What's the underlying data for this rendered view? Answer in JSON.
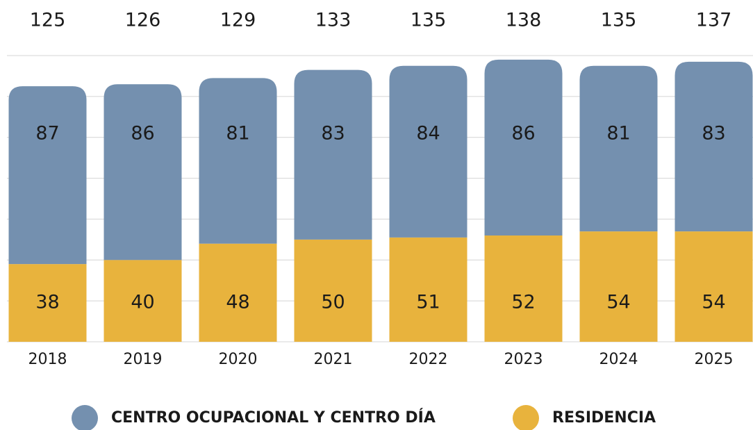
{
  "chart_data": {
    "type": "stacked_bar",
    "categories": [
      "2018",
      "2019",
      "2020",
      "2021",
      "2022",
      "2023",
      "2024",
      "2025"
    ],
    "series": [
      {
        "name": "CENTRO OCUPACIONAL Y CENTRO DÍA",
        "color": "#7490af",
        "values": [
          87,
          86,
          81,
          83,
          84,
          86,
          81,
          83
        ]
      },
      {
        "name": "RESIDENCIA",
        "color": "#e8b33d",
        "values": [
          38,
          40,
          48,
          50,
          51,
          52,
          54,
          54
        ]
      }
    ],
    "totals": [
      125,
      126,
      129,
      133,
      135,
      138,
      135,
      137
    ],
    "ylim": [
      0,
      140
    ],
    "yticks": [
      0,
      20,
      40,
      60,
      80,
      100,
      120,
      140
    ],
    "grid": true,
    "legend": "bottom"
  }
}
